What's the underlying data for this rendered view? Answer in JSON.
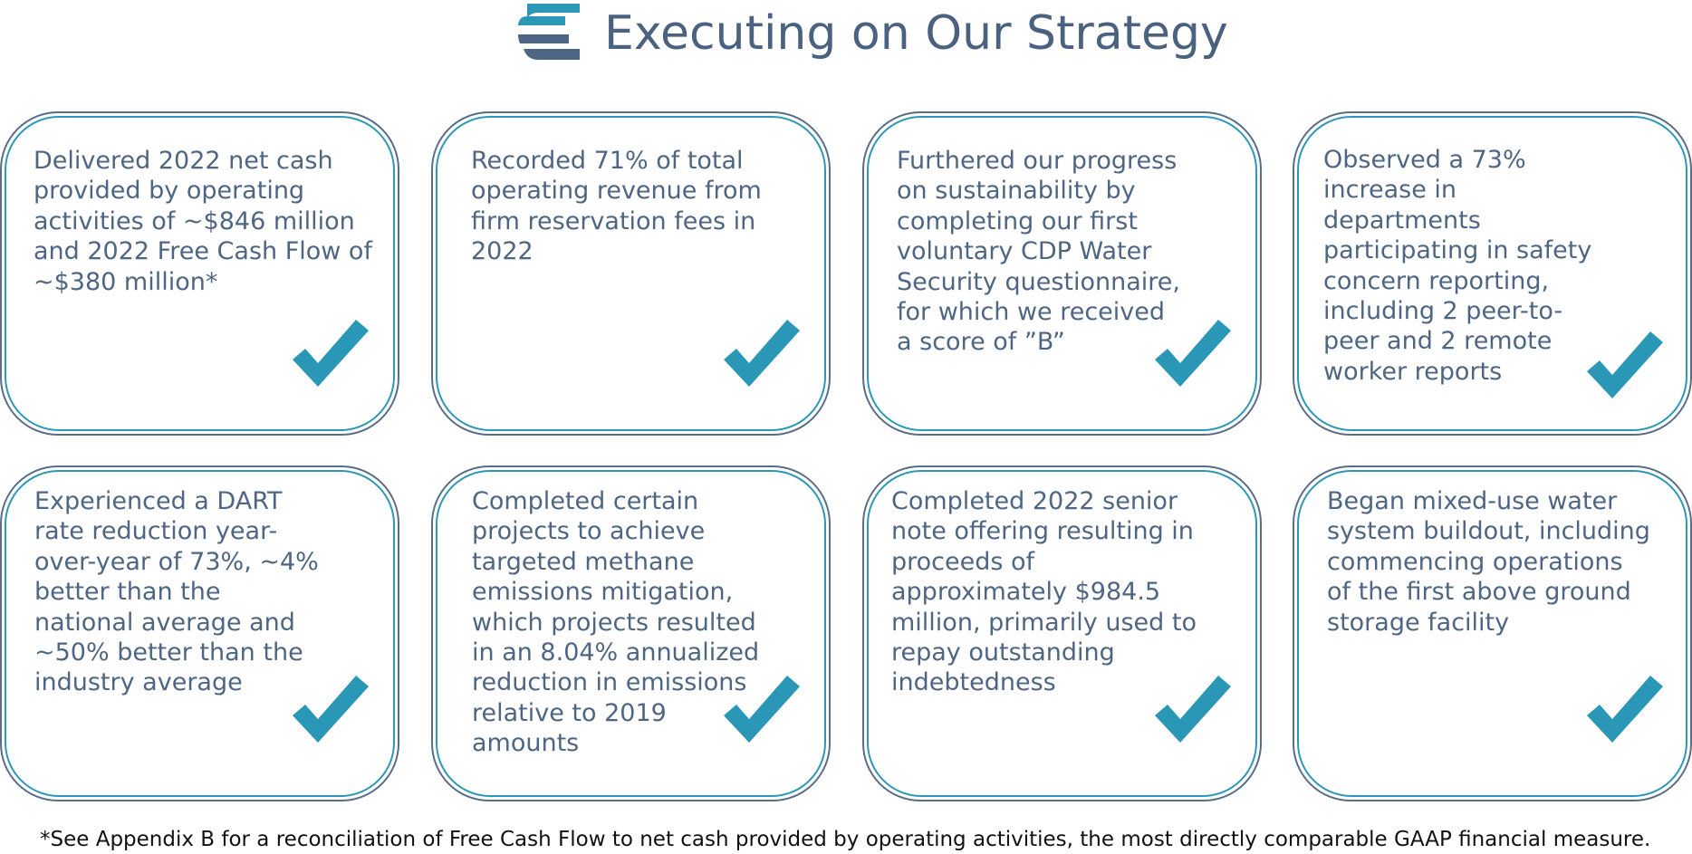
{
  "header": {
    "title": "Executing on Our Strategy",
    "logo_icon": "company-logo-icon"
  },
  "colors": {
    "title": "#4a6280",
    "card_border_outer": "#5a6d86",
    "card_border_inner": "#2c98b8",
    "card_text": "#4e6683",
    "check": "#2a97b6",
    "logo_teal": "#2c98b8",
    "logo_slate": "#4e6683"
  },
  "cards": [
    {
      "lines": [
        "Delivered 2022 net cash",
        "provided by operating",
        "activities of ~$846 million",
        "and 2022 Free Cash Flow of",
        "~$380 million*"
      ],
      "icon": "checkmark-icon"
    },
    {
      "lines": [
        "Recorded 71% of total",
        "operating revenue from",
        "firm reservation fees in",
        "2022"
      ],
      "icon": "checkmark-icon"
    },
    {
      "lines": [
        "Furthered our progress",
        "on sustainability by",
        "completing our first",
        "voluntary CDP Water",
        "Security questionnaire,",
        "for which we received",
        "a score of ”B”"
      ],
      "icon": "checkmark-icon"
    },
    {
      "lines": [
        "Observed a 73%",
        "increase in",
        "departments",
        "participating in safety",
        "concern reporting,",
        "including 2 peer-to-",
        "peer and 2 remote",
        "worker reports"
      ],
      "icon": "checkmark-icon"
    },
    {
      "lines": [
        "Experienced a DART",
        "rate reduction year-",
        "over-year of 73%, ~4%",
        "better than the",
        "national average and",
        "~50% better than the",
        "industry average"
      ],
      "icon": "checkmark-icon"
    },
    {
      "lines": [
        "Completed certain",
        "projects to achieve",
        "targeted methane",
        "emissions mitigation,",
        "which projects resulted",
        "in an 8.04% annualized",
        "reduction in emissions",
        "relative to 2019",
        "amounts"
      ],
      "icon": "checkmark-icon"
    },
    {
      "lines": [
        "Completed 2022 senior",
        "note offering resulting in",
        "proceeds of",
        "approximately $984.5",
        "million, primarily used to",
        "repay outstanding",
        "indebtedness"
      ],
      "icon": "checkmark-icon"
    },
    {
      "lines": [
        "Began mixed-use water",
        "system buildout, including",
        "commencing operations",
        "of the first above ground",
        "storage facility"
      ],
      "icon": "checkmark-icon"
    }
  ],
  "footnote": "*See Appendix B for a reconciliation of Free Cash Flow to net cash provided by operating activities, the most directly comparable GAAP financial measure."
}
